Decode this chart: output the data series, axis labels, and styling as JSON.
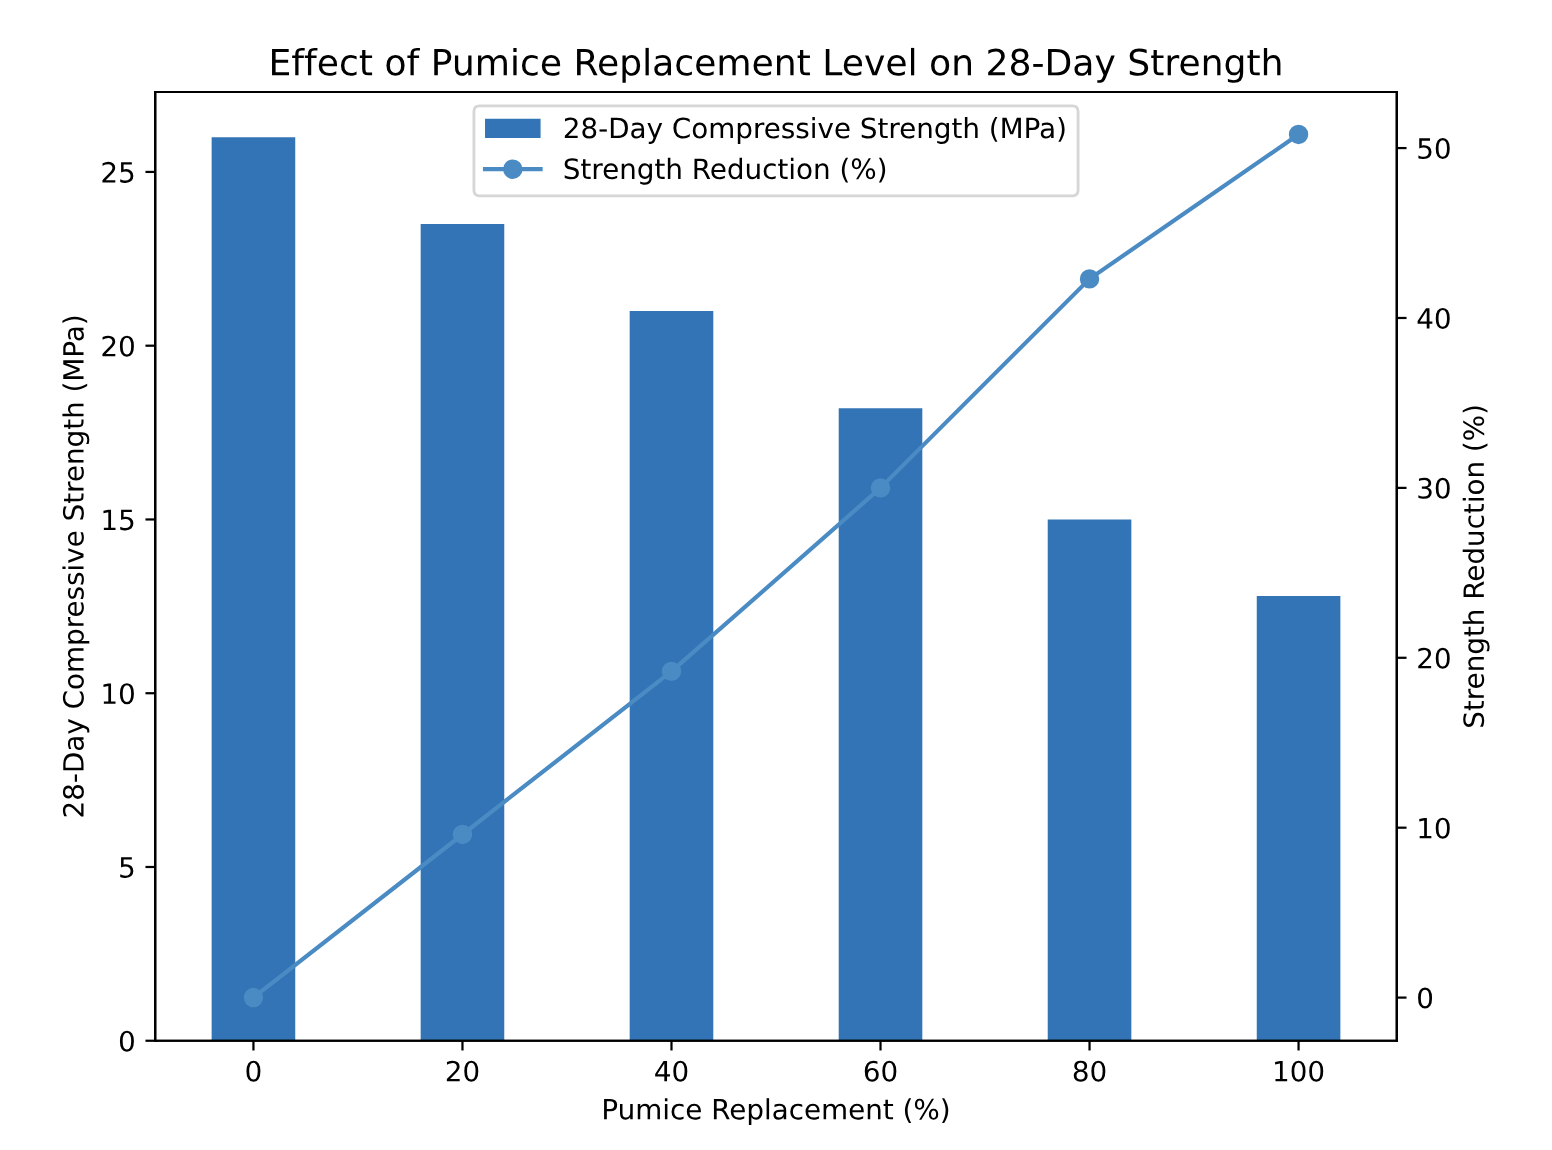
{
  "chart_data": {
    "type": "bar",
    "title": "Effect of Pumice Replacement Level on 28-Day Strength",
    "xlabel": "Pumice Replacement (%)",
    "ylabel": "28-Day Compressive Strength (MPa)",
    "y2label": "Strength Reduction (%)",
    "categories": [
      "0",
      "20",
      "40",
      "60",
      "80",
      "100"
    ],
    "series": [
      {
        "name": "28-Day Compressive Strength (MPa)",
        "color": "#3274b5",
        "values": [
          26.0,
          23.5,
          21.0,
          18.2,
          15.0,
          12.8
        ]
      },
      {
        "name": "Strength Reduction (%)",
        "type": "line",
        "axis": "y2",
        "color": "#4a8bc4",
        "values": [
          0,
          9.6,
          19.2,
          30.0,
          42.3,
          50.8
        ]
      }
    ],
    "ylim": [
      0,
      27.3
    ],
    "yticks": [
      0,
      5,
      10,
      15,
      20,
      25
    ],
    "y2lim": [
      -2.54,
      53.3
    ],
    "y2ticks": [
      0,
      10,
      20,
      30,
      40,
      50
    ],
    "marker": "circle",
    "legend": "top",
    "grid": false
  }
}
